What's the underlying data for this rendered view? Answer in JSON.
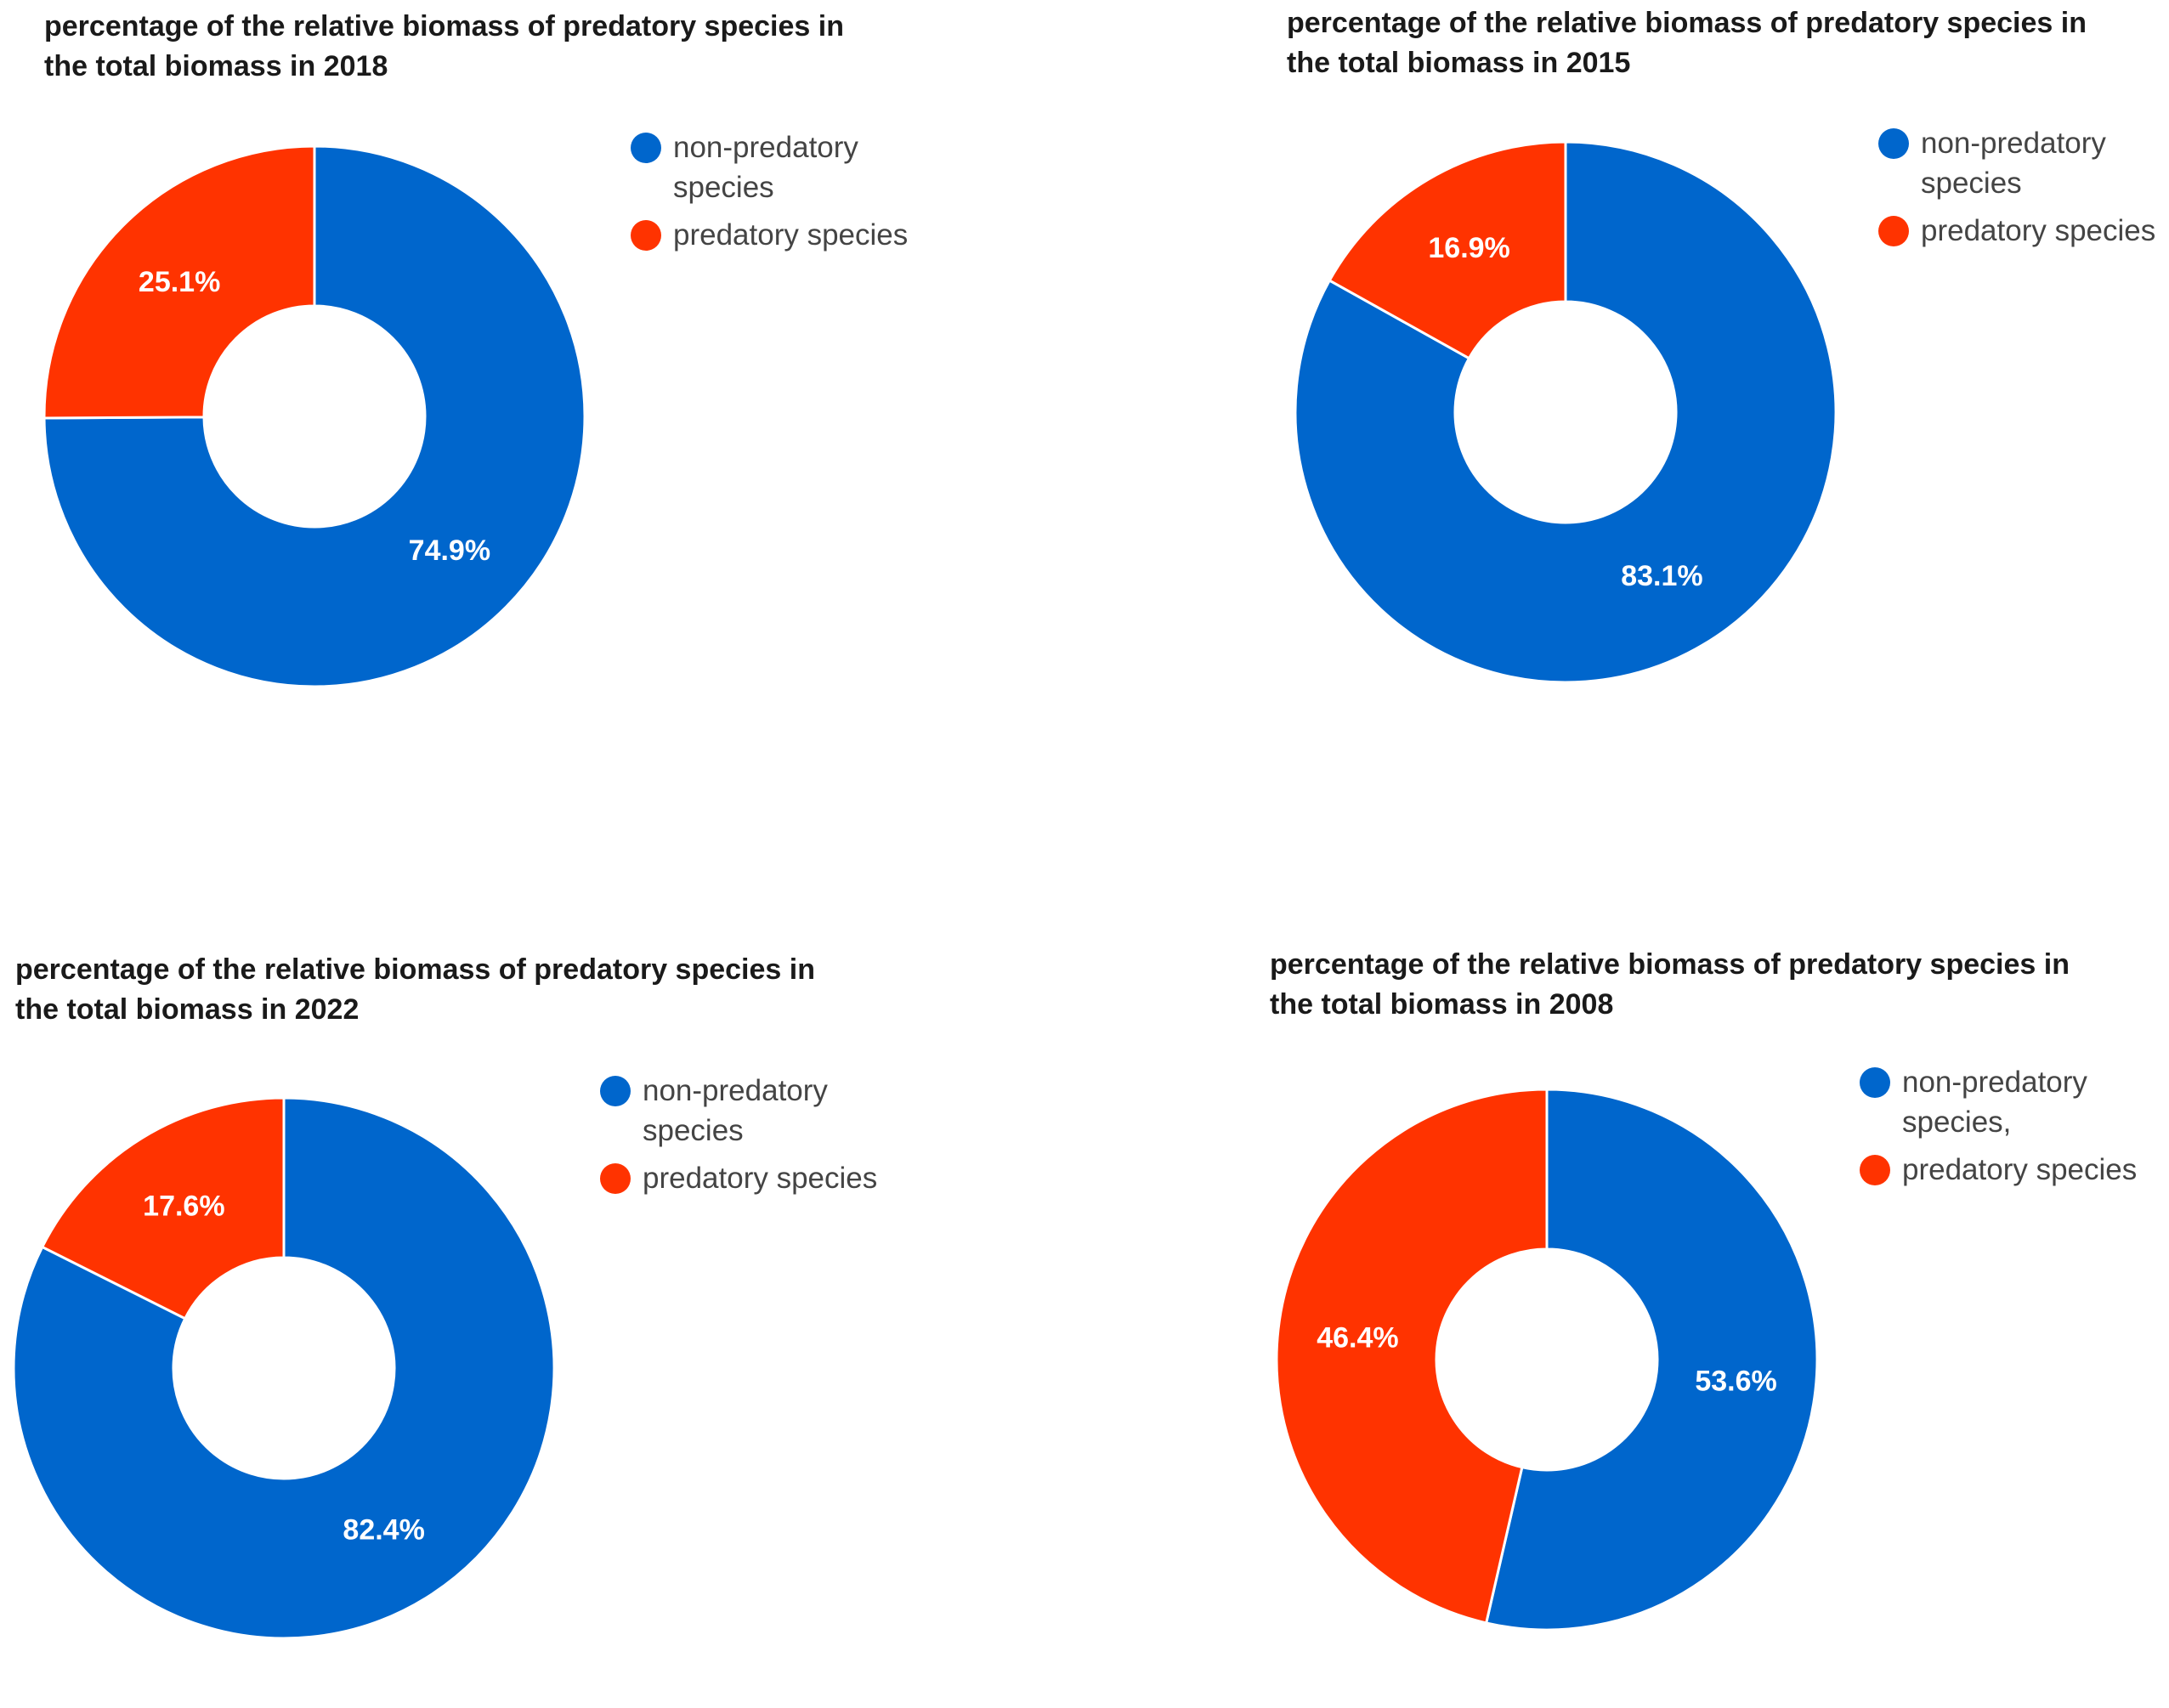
{
  "colors": {
    "non_predatory": "#0066cc",
    "predatory": "#ff3300"
  },
  "chart_data": [
    {
      "type": "pie",
      "donut": true,
      "title_lines": [
        "percentage of the relative biomass of predatory species in",
        "the total biomass in 2018"
      ],
      "legend": [
        "non-predatory species",
        "predatory species"
      ],
      "slices": [
        {
          "name": "non-predatory species",
          "value": 74.9,
          "label": "74.9%",
          "color": "#0066cc"
        },
        {
          "name": "predatory species",
          "value": 25.1,
          "label": "25.1%",
          "color": "#ff3300"
        }
      ]
    },
    {
      "type": "pie",
      "donut": true,
      "title_lines": [
        "percentage of the relative biomass of predatory species in",
        "the total biomass in 2015"
      ],
      "legend": [
        "non-predatory species",
        "predatory species"
      ],
      "slices": [
        {
          "name": "non-predatory species",
          "value": 83.1,
          "label": "83.1%",
          "color": "#0066cc"
        },
        {
          "name": "predatory species",
          "value": 16.9,
          "label": "16.9%",
          "color": "#ff3300"
        }
      ]
    },
    {
      "type": "pie",
      "donut": true,
      "title_lines": [
        "percentage of the relative biomass of predatory species in",
        "the total biomass in 2022"
      ],
      "legend": [
        "non-predatory species",
        "predatory species"
      ],
      "slices": [
        {
          "name": "non-predatory species",
          "value": 82.4,
          "label": "82.4%",
          "color": "#0066cc"
        },
        {
          "name": "predatory species",
          "value": 17.6,
          "label": "17.6%",
          "color": "#ff3300"
        }
      ]
    },
    {
      "type": "pie",
      "donut": true,
      "title_lines": [
        "percentage of the relative biomass of predatory species in",
        "the total biomass in 2008"
      ],
      "legend": [
        "non-predatory species,",
        "predatory species"
      ],
      "slices": [
        {
          "name": "non-predatory species,",
          "value": 53.6,
          "label": "53.6%",
          "color": "#0066cc"
        },
        {
          "name": "predatory species",
          "value": 46.4,
          "label": "46.4%",
          "color": "#ff3300"
        }
      ]
    }
  ]
}
